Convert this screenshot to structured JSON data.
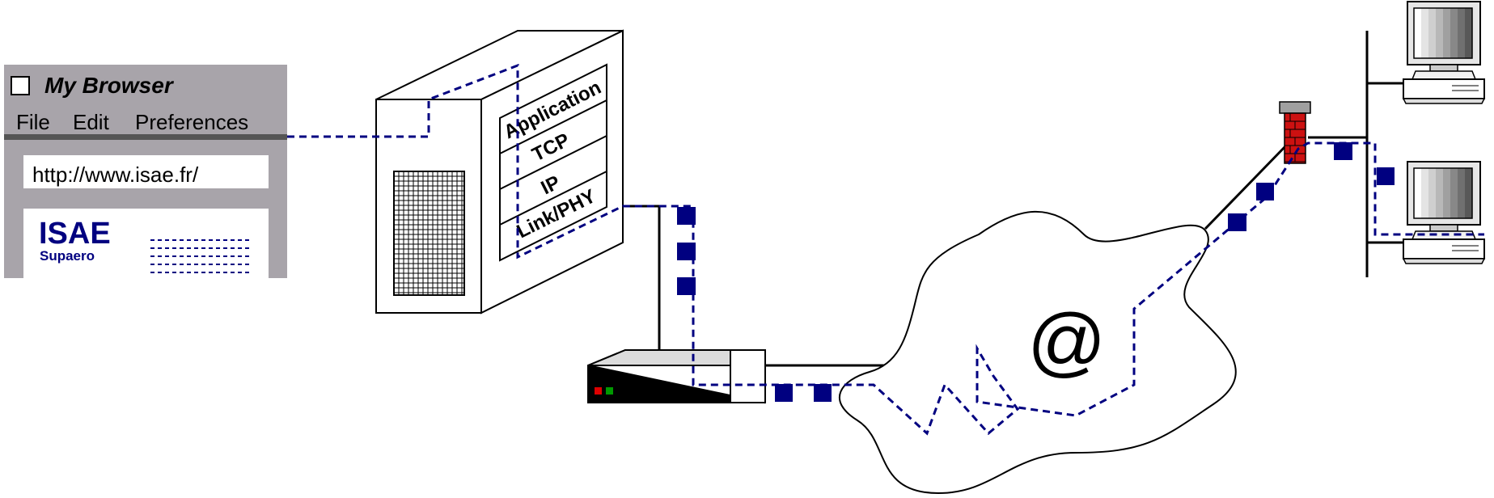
{
  "browser": {
    "title": "My Browser",
    "menu": [
      "File",
      "Edit",
      "Preferences"
    ],
    "url": "http://www.isae.fr/",
    "logo_title": "ISAE",
    "logo_subtitle": "Supaero"
  },
  "server": {
    "stack_layers": [
      "Application",
      "TCP",
      "IP",
      "Link/PHY"
    ]
  },
  "cloud": {
    "symbol": "@"
  },
  "colors": {
    "path": "#000080",
    "browser_frame": "#a8a4aa",
    "firewall": "#cc1111",
    "router_led_red": "#dd0000",
    "router_led_green": "#009900"
  }
}
